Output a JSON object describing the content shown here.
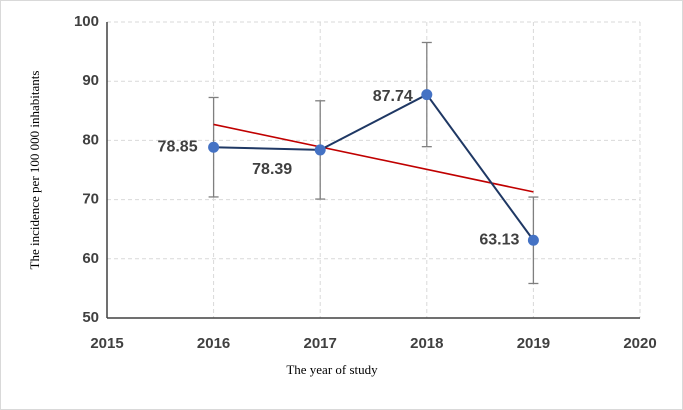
{
  "chart_data": {
    "type": "line",
    "x_label": "The year of study",
    "y_label": "The incidence per 100 000 inhabitants",
    "x": [
      2016,
      2017,
      2018,
      2019
    ],
    "series": [
      {
        "color": "#1f3864",
        "marker_color": "#4472c4",
        "values": [
          78.85,
          78.39,
          87.74,
          63.13
        ],
        "errors": [
          8.4,
          8.3,
          8.8,
          7.3
        ]
      }
    ],
    "trend": {
      "color": "#c00000",
      "x": [
        2016,
        2019
      ],
      "values": [
        82.7,
        71.3
      ]
    },
    "error_color": "#7f7f7f",
    "xlim": [
      2015,
      2020
    ],
    "xticks": [
      2015,
      2016,
      2017,
      2018,
      2019,
      2020
    ],
    "ylim": [
      50,
      100
    ],
    "yticks": [
      50,
      60,
      70,
      80,
      90,
      100
    ],
    "grid": true
  }
}
